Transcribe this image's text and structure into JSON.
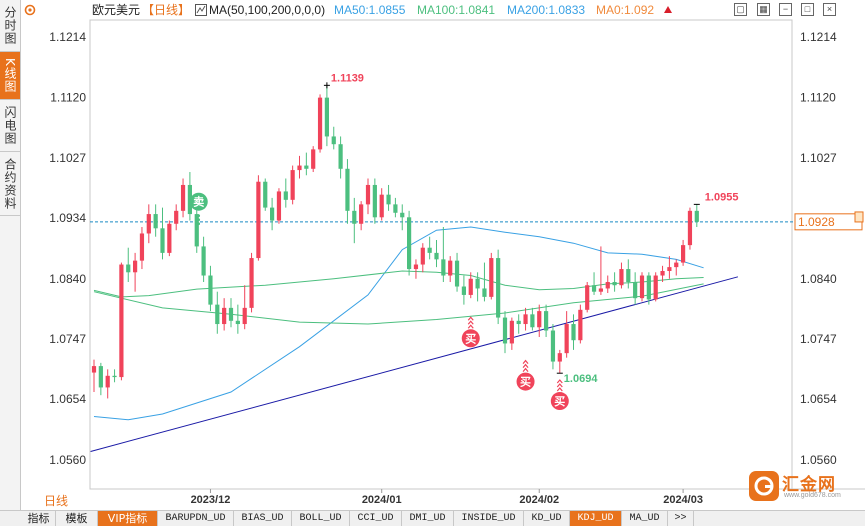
{
  "sidebar": {
    "tabs": [
      {
        "label": "分时图",
        "active": false
      },
      {
        "label": "K线图",
        "active": true
      },
      {
        "label": "闪电图",
        "active": false
      },
      {
        "label": "合约资料",
        "active": false
      }
    ]
  },
  "header": {
    "settings_icon": "gear-icon",
    "symbol": "欧元美元",
    "timeframe_label": "【日线】",
    "indicator_icon": "indicator-chart-icon",
    "ma_main": "MA(50,100,200,0,0,0)",
    "ma50": "MA50:1.0855",
    "ma100": "MA100:1.0841",
    "ma200": "MA200:1.0833",
    "ma0": "MA0:1.092",
    "toolbar_icons": [
      "restore-icon",
      "grid-icon",
      "minimize-icon",
      "window-icon",
      "close-icon"
    ]
  },
  "price_axis": {
    "ticks": [
      "1.1214",
      "1.1120",
      "1.1027",
      "1.0934",
      "1.0840",
      "1.0747",
      "1.0654",
      "1.0560"
    ]
  },
  "time_axis": {
    "timeframe": "日线",
    "labels": [
      "2023/12",
      "2024/01",
      "2024/02",
      "2024/03"
    ]
  },
  "current_price": "1.0928",
  "colors": {
    "up": "#f0435a",
    "down": "#4cbf7f",
    "ma50": "#39a1e4",
    "ma100": "#4cbf7f",
    "trendline": "#1a1aa6",
    "accent": "#e8721c",
    "price_line": "#1a8bc4"
  },
  "chart_data": {
    "type": "candlestick",
    "symbol": "EURUSD",
    "timeframe": "daily",
    "ylim": [
      1.0515,
      1.124
    ],
    "x_labels": [
      "2023/12",
      "2024/01",
      "2024/02",
      "2024/03"
    ],
    "candles": [
      {
        "o": 1.0695,
        "h": 1.0715,
        "l": 1.0665,
        "c": 1.0705
      },
      {
        "o": 1.0705,
        "h": 1.071,
        "l": 1.066,
        "c": 1.0672
      },
      {
        "o": 1.0672,
        "h": 1.07,
        "l": 1.0655,
        "c": 1.069
      },
      {
        "o": 1.069,
        "h": 1.07,
        "l": 1.068,
        "c": 1.0688
      },
      {
        "o": 1.0688,
        "h": 1.0865,
        "l": 1.0683,
        "c": 1.0862
      },
      {
        "o": 1.0862,
        "h": 1.0888,
        "l": 1.0835,
        "c": 1.085
      },
      {
        "o": 1.085,
        "h": 1.088,
        "l": 1.082,
        "c": 1.0868
      },
      {
        "o": 1.0868,
        "h": 1.092,
        "l": 1.0855,
        "c": 1.091
      },
      {
        "o": 1.091,
        "h": 1.0955,
        "l": 1.0895,
        "c": 1.094
      },
      {
        "o": 1.094,
        "h": 1.0955,
        "l": 1.0905,
        "c": 1.0918
      },
      {
        "o": 1.0918,
        "h": 1.095,
        "l": 1.087,
        "c": 1.088
      },
      {
        "o": 1.088,
        "h": 1.093,
        "l": 1.0875,
        "c": 1.0925
      },
      {
        "o": 1.0925,
        "h": 1.0955,
        "l": 1.0915,
        "c": 1.0945
      },
      {
        "o": 1.0945,
        "h": 1.0995,
        "l": 1.0935,
        "c": 1.0985
      },
      {
        "o": 1.0985,
        "h": 1.1005,
        "l": 1.093,
        "c": 1.094
      },
      {
        "o": 1.094,
        "h": 1.0952,
        "l": 1.088,
        "c": 1.089
      },
      {
        "o": 1.089,
        "h": 1.0905,
        "l": 1.0835,
        "c": 1.0845
      },
      {
        "o": 1.0845,
        "h": 1.086,
        "l": 1.079,
        "c": 1.08
      },
      {
        "o": 1.08,
        "h": 1.082,
        "l": 1.0755,
        "c": 1.077
      },
      {
        "o": 1.077,
        "h": 1.081,
        "l": 1.076,
        "c": 1.0795
      },
      {
        "o": 1.0795,
        "h": 1.081,
        "l": 1.0765,
        "c": 1.0775
      },
      {
        "o": 1.0775,
        "h": 1.08,
        "l": 1.0755,
        "c": 1.077
      },
      {
        "o": 1.077,
        "h": 1.083,
        "l": 1.0762,
        "c": 1.0795
      },
      {
        "o": 1.0795,
        "h": 1.088,
        "l": 1.0788,
        "c": 1.0872
      },
      {
        "o": 1.0872,
        "h": 1.1,
        "l": 1.0868,
        "c": 1.099
      },
      {
        "o": 1.099,
        "h": 1.0995,
        "l": 1.0945,
        "c": 1.095
      },
      {
        "o": 1.095,
        "h": 1.0965,
        "l": 1.0915,
        "c": 1.093
      },
      {
        "o": 1.093,
        "h": 1.098,
        "l": 1.0925,
        "c": 1.0975
      },
      {
        "o": 1.0975,
        "h": 1.0995,
        "l": 1.095,
        "c": 1.0962
      },
      {
        "o": 1.0962,
        "h": 1.1015,
        "l": 1.0955,
        "c": 1.1008
      },
      {
        "o": 1.1008,
        "h": 1.103,
        "l": 1.0995,
        "c": 1.1015
      },
      {
        "o": 1.1015,
        "h": 1.1035,
        "l": 1.1,
        "c": 1.101
      },
      {
        "o": 1.101,
        "h": 1.1045,
        "l": 1.1005,
        "c": 1.104
      },
      {
        "o": 1.104,
        "h": 1.1125,
        "l": 1.1035,
        "c": 1.112
      },
      {
        "o": 1.112,
        "h": 1.1139,
        "l": 1.1045,
        "c": 1.106
      },
      {
        "o": 1.106,
        "h": 1.1075,
        "l": 1.104,
        "c": 1.1048
      },
      {
        "o": 1.1048,
        "h": 1.106,
        "l": 1.0995,
        "c": 1.101
      },
      {
        "o": 1.101,
        "h": 1.1025,
        "l": 1.0925,
        "c": 1.0945
      },
      {
        "o": 1.0945,
        "h": 1.0965,
        "l": 1.0895,
        "c": 1.0925
      },
      {
        "o": 1.0925,
        "h": 1.096,
        "l": 1.0915,
        "c": 1.0955
      },
      {
        "o": 1.0955,
        "h": 1.0995,
        "l": 1.094,
        "c": 1.0985
      },
      {
        "o": 1.0985,
        "h": 1.0995,
        "l": 1.0925,
        "c": 1.0935
      },
      {
        "o": 1.0935,
        "h": 1.098,
        "l": 1.093,
        "c": 1.097
      },
      {
        "o": 1.097,
        "h": 1.0985,
        "l": 1.0945,
        "c": 1.0955
      },
      {
        "o": 1.0955,
        "h": 1.0965,
        "l": 1.0935,
        "c": 1.0942
      },
      {
        "o": 1.0942,
        "h": 1.0955,
        "l": 1.0915,
        "c": 1.0935
      },
      {
        "o": 1.0935,
        "h": 1.0945,
        "l": 1.0845,
        "c": 1.0855
      },
      {
        "o": 1.0855,
        "h": 1.087,
        "l": 1.084,
        "c": 1.0862
      },
      {
        "o": 1.0862,
        "h": 1.0895,
        "l": 1.085,
        "c": 1.0888
      },
      {
        "o": 1.0888,
        "h": 1.0905,
        "l": 1.087,
        "c": 1.088
      },
      {
        "o": 1.088,
        "h": 1.09,
        "l": 1.0858,
        "c": 1.087
      },
      {
        "o": 1.087,
        "h": 1.092,
        "l": 1.0835,
        "c": 1.0845
      },
      {
        "o": 1.0845,
        "h": 1.0875,
        "l": 1.0835,
        "c": 1.0868
      },
      {
        "o": 1.0868,
        "h": 1.088,
        "l": 1.082,
        "c": 1.0828
      },
      {
        "o": 1.0828,
        "h": 1.0845,
        "l": 1.08,
        "c": 1.0815
      },
      {
        "o": 1.0815,
        "h": 1.085,
        "l": 1.081,
        "c": 1.084
      },
      {
        "o": 1.084,
        "h": 1.085,
        "l": 1.0805,
        "c": 1.0825
      },
      {
        "o": 1.0825,
        "h": 1.0865,
        "l": 1.0805,
        "c": 1.0812
      },
      {
        "o": 1.0812,
        "h": 1.088,
        "l": 1.0808,
        "c": 1.0872
      },
      {
        "o": 1.0872,
        "h": 1.0885,
        "l": 1.077,
        "c": 1.078
      },
      {
        "o": 1.078,
        "h": 1.079,
        "l": 1.0725,
        "c": 1.074
      },
      {
        "o": 1.074,
        "h": 1.078,
        "l": 1.073,
        "c": 1.0775
      },
      {
        "o": 1.0775,
        "h": 1.0785,
        "l": 1.0755,
        "c": 1.077
      },
      {
        "o": 1.077,
        "h": 1.0795,
        "l": 1.076,
        "c": 1.0785
      },
      {
        "o": 1.0785,
        "h": 1.0795,
        "l": 1.076,
        "c": 1.0765
      },
      {
        "o": 1.0765,
        "h": 1.08,
        "l": 1.075,
        "c": 1.079
      },
      {
        "o": 1.079,
        "h": 1.08,
        "l": 1.075,
        "c": 1.076
      },
      {
        "o": 1.076,
        "h": 1.077,
        "l": 1.07,
        "c": 1.0712
      },
      {
        "o": 1.0712,
        "h": 1.073,
        "l": 1.0694,
        "c": 1.0725
      },
      {
        "o": 1.0725,
        "h": 1.079,
        "l": 1.0718,
        "c": 1.077
      },
      {
        "o": 1.077,
        "h": 1.0785,
        "l": 1.073,
        "c": 1.0745
      },
      {
        "o": 1.0745,
        "h": 1.08,
        "l": 1.074,
        "c": 1.0792
      },
      {
        "o": 1.0792,
        "h": 1.0835,
        "l": 1.0788,
        "c": 1.083
      },
      {
        "o": 1.083,
        "h": 1.085,
        "l": 1.0815,
        "c": 1.082
      },
      {
        "o": 1.082,
        "h": 1.089,
        "l": 1.0815,
        "c": 1.0825
      },
      {
        "o": 1.0825,
        "h": 1.0845,
        "l": 1.0818,
        "c": 1.0835
      },
      {
        "o": 1.0835,
        "h": 1.085,
        "l": 1.082,
        "c": 1.083
      },
      {
        "o": 1.083,
        "h": 1.0865,
        "l": 1.0825,
        "c": 1.0855
      },
      {
        "o": 1.0855,
        "h": 1.087,
        "l": 1.0825,
        "c": 1.0835
      },
      {
        "o": 1.0835,
        "h": 1.085,
        "l": 1.08,
        "c": 1.081
      },
      {
        "o": 1.081,
        "h": 1.085,
        "l": 1.0805,
        "c": 1.0845
      },
      {
        "o": 1.0845,
        "h": 1.085,
        "l": 1.08,
        "c": 1.0808
      },
      {
        "o": 1.0808,
        "h": 1.085,
        "l": 1.0805,
        "c": 1.0845
      },
      {
        "o": 1.0845,
        "h": 1.086,
        "l": 1.0835,
        "c": 1.0852
      },
      {
        "o": 1.0852,
        "h": 1.0875,
        "l": 1.084,
        "c": 1.0858
      },
      {
        "o": 1.0858,
        "h": 1.087,
        "l": 1.0845,
        "c": 1.0865
      },
      {
        "o": 1.0865,
        "h": 1.09,
        "l": 1.086,
        "c": 1.0892
      },
      {
        "o": 1.0892,
        "h": 1.095,
        "l": 1.0885,
        "c": 1.0945
      },
      {
        "o": 1.0945,
        "h": 1.0955,
        "l": 1.092,
        "c": 1.0928
      }
    ],
    "moving_averages": [
      {
        "name": "MA50",
        "color": "#39a1e4",
        "points": [
          [
            0,
            1.0627
          ],
          [
            5,
            1.0622
          ],
          [
            10,
            1.0631
          ],
          [
            20,
            1.0665
          ],
          [
            30,
            1.0735
          ],
          [
            40,
            1.0815
          ],
          [
            45,
            1.0885
          ],
          [
            50,
            1.0915
          ],
          [
            55,
            1.092
          ],
          [
            60,
            1.0912
          ],
          [
            65,
            1.0905
          ],
          [
            70,
            1.0895
          ],
          [
            75,
            1.088
          ],
          [
            80,
            1.0878
          ],
          [
            85,
            1.087
          ],
          [
            89,
            1.0857
          ]
        ]
      },
      {
        "name": "MA100",
        "color": "#4cbf7f",
        "points": [
          [
            0,
            1.0822
          ],
          [
            4,
            1.0812
          ],
          [
            8,
            1.0814
          ],
          [
            15,
            1.0824
          ],
          [
            25,
            1.083
          ],
          [
            35,
            1.084
          ],
          [
            45,
            1.0852
          ],
          [
            50,
            1.085
          ],
          [
            55,
            1.0845
          ],
          [
            60,
            1.083
          ],
          [
            65,
            1.0823
          ],
          [
            70,
            1.0825
          ],
          [
            75,
            1.0832
          ],
          [
            80,
            1.0835
          ],
          [
            85,
            1.084
          ],
          [
            89,
            1.0842
          ]
        ]
      },
      {
        "name": "MA200",
        "color": "#4cbf7f",
        "points": [
          [
            0,
            1.082
          ],
          [
            10,
            1.0795
          ],
          [
            20,
            1.0785
          ],
          [
            30,
            1.0773
          ],
          [
            40,
            1.077
          ],
          [
            50,
            1.0777
          ],
          [
            60,
            1.0787
          ],
          [
            70,
            1.0803
          ],
          [
            80,
            1.0813
          ],
          [
            89,
            1.0832
          ]
        ]
      }
    ],
    "trendline": {
      "from": [
        -0.5,
        1.0573
      ],
      "to": [
        94,
        1.0843
      ]
    },
    "annotations": [
      {
        "type": "high",
        "index": 34,
        "text": "1.1139"
      },
      {
        "type": "low",
        "index": 68,
        "text": "1.0694"
      },
      {
        "type": "last_high",
        "index": 88,
        "text": "1.0955"
      }
    ],
    "signals": [
      {
        "kind": "sell",
        "label": "卖",
        "index": 15,
        "price": 1.0956
      },
      {
        "kind": "buy",
        "label": "买",
        "index": 55,
        "price": 1.0782
      },
      {
        "kind": "buy",
        "label": "买",
        "index": 63,
        "price": 1.0715
      },
      {
        "kind": "buy",
        "label": "买",
        "index": 68,
        "price": 1.0685
      }
    ]
  },
  "bottom_tabs": [
    {
      "label": "指标",
      "active": false
    },
    {
      "label": "模板",
      "active": false
    },
    {
      "label": "VIP指标",
      "active": true
    },
    {
      "label": "BARUPDN_UD",
      "active": false
    },
    {
      "label": "BIAS_UD",
      "active": false
    },
    {
      "label": "BOLL_UD",
      "active": false
    },
    {
      "label": "CCI_UD",
      "active": false
    },
    {
      "label": "DMI_UD",
      "active": false
    },
    {
      "label": "INSIDE_UD",
      "active": false
    },
    {
      "label": "KD_UD",
      "active": false
    },
    {
      "label": "KDJ_UD",
      "active": true
    },
    {
      "label": "MA_UD",
      "active": false
    },
    {
      "label": ">>",
      "active": false
    }
  ],
  "watermark": {
    "text": "汇金网",
    "url": "www.gold678.com"
  }
}
